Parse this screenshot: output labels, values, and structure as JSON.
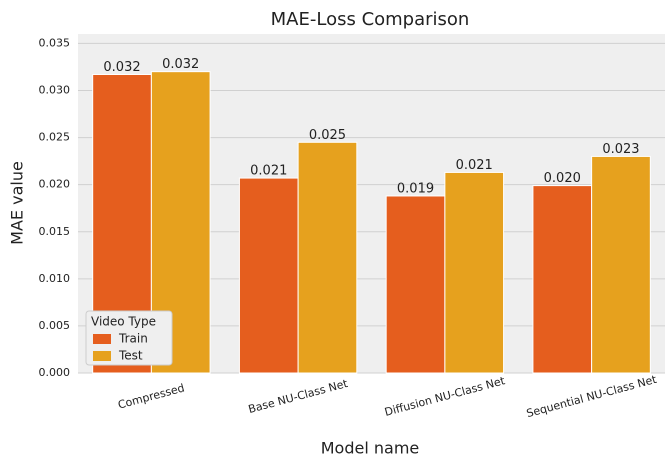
{
  "chart_data": {
    "type": "bar",
    "title": "MAE-Loss Comparison",
    "x_label": "Model name",
    "y_label": "MAE value",
    "categories": [
      "Compressed",
      "Base NU-Class Net",
      "Diffusion NU-Class Net",
      "Sequential NU-Class Net"
    ],
    "series": [
      {
        "name": "Train",
        "color": "#e55e1e",
        "values": [
          0.0317,
          0.0207,
          0.0188,
          0.0199
        ],
        "value_labels": [
          "0.032",
          "0.021",
          "0.019",
          "0.020"
        ]
      },
      {
        "name": "Test",
        "color": "#e6a11e",
        "values": [
          0.032,
          0.0245,
          0.0213,
          0.023
        ],
        "value_labels": [
          "0.032",
          "0.025",
          "0.021",
          "0.023"
        ]
      }
    ],
    "legend_title": "Video Type",
    "legend": "lower left",
    "ylim": [
      0,
      0.036
    ],
    "yticks": [
      {
        "value": 0,
        "label": "0.000"
      },
      {
        "value": 0.005,
        "label": "0.005"
      },
      {
        "value": 0.01,
        "label": "0.010"
      },
      {
        "value": 0.015,
        "label": "0.015"
      },
      {
        "value": 0.02,
        "label": "0.020"
      },
      {
        "value": 0.025,
        "label": "0.025"
      },
      {
        "value": 0.03,
        "label": "0.030"
      },
      {
        "value": 0.035,
        "label": "0.035"
      }
    ],
    "grid": true
  }
}
